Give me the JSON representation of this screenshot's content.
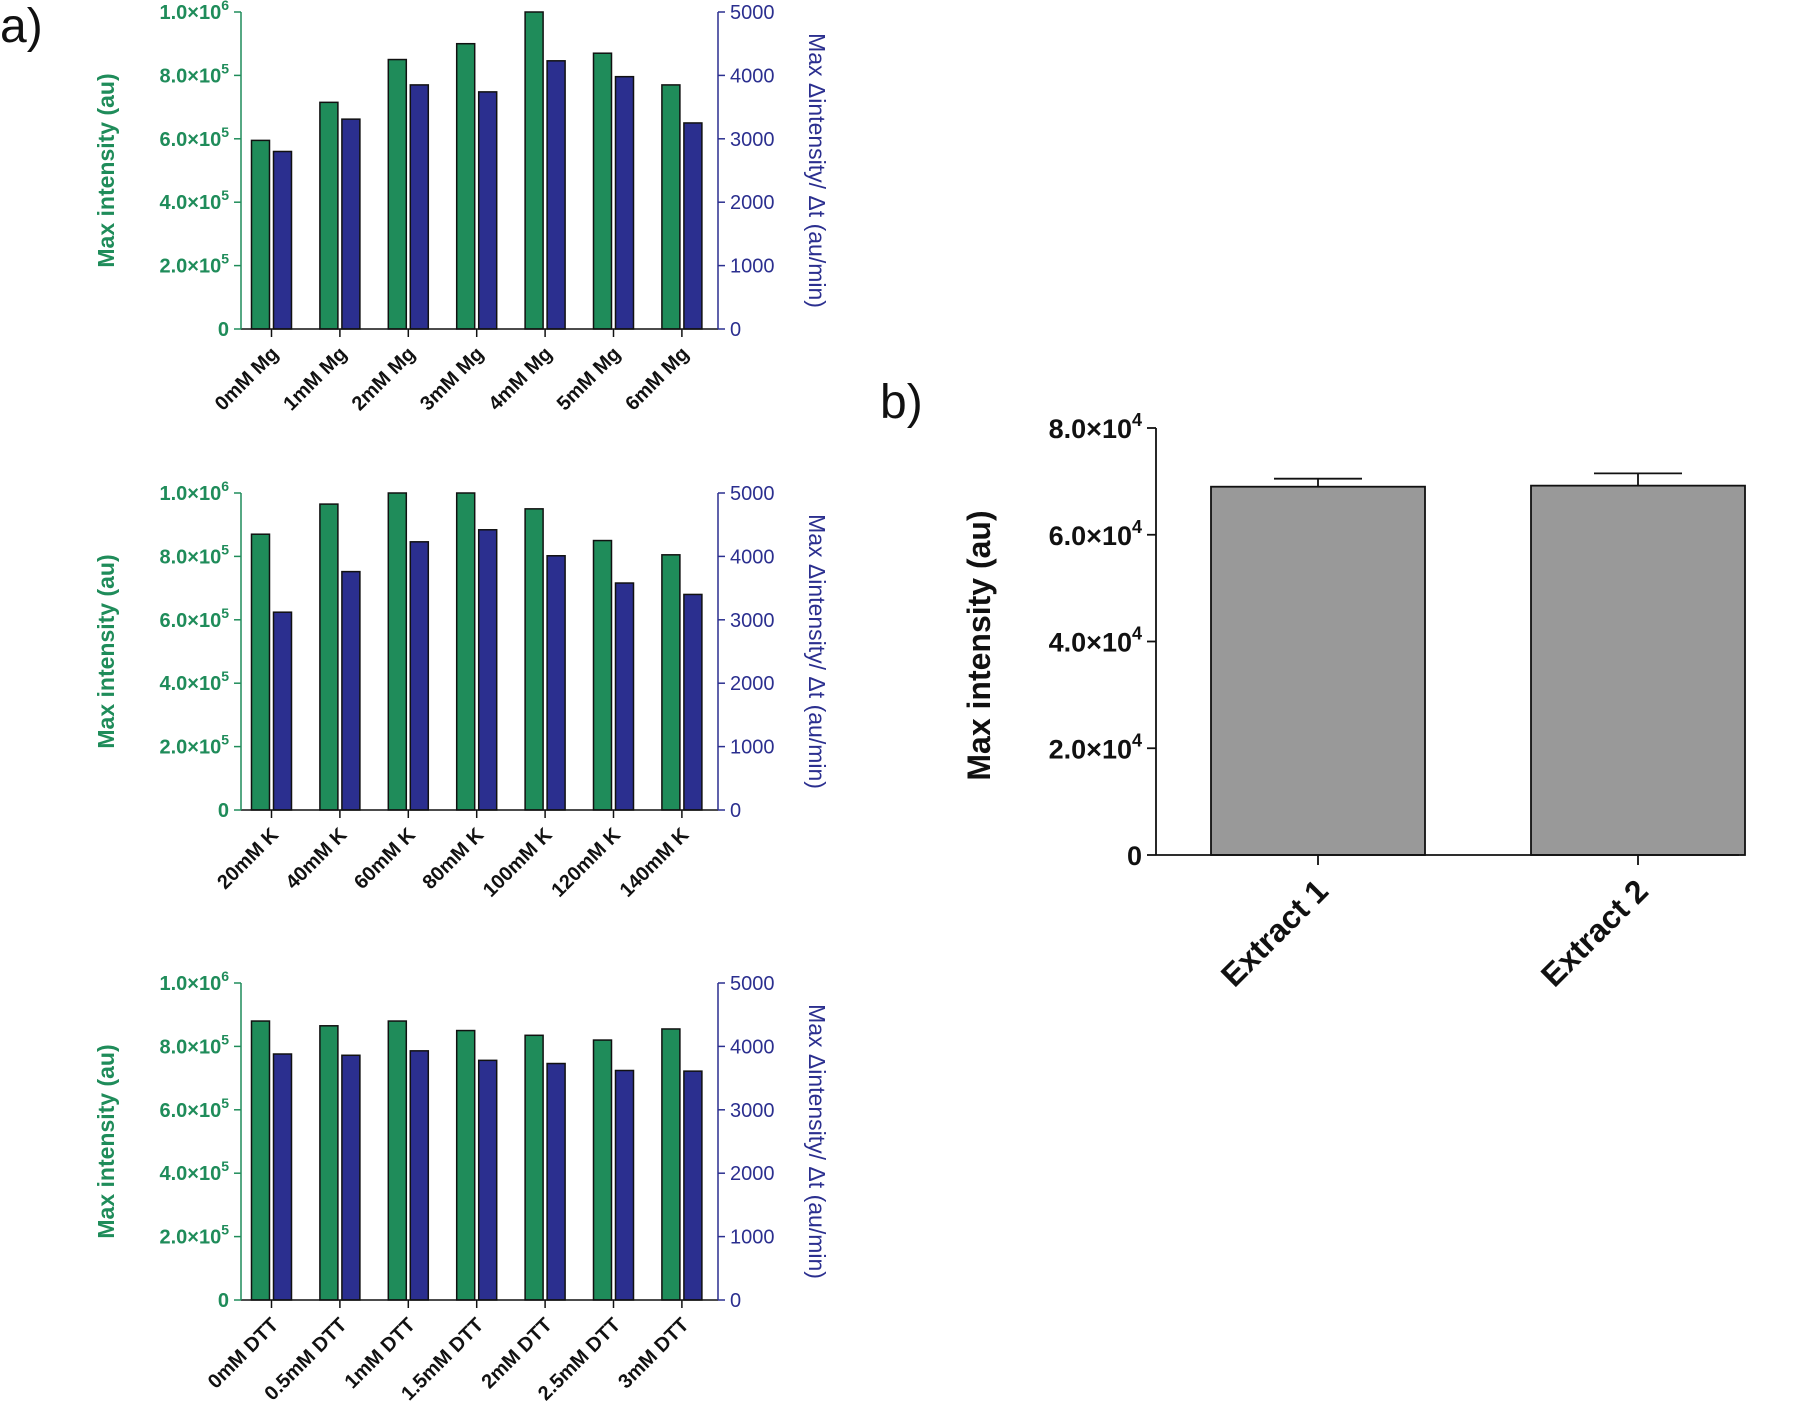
{
  "panel_labels": {
    "a": "a)",
    "b": "b)"
  },
  "colors": {
    "green": "#1f8c5a",
    "blue": "#2b2f8f",
    "gray": "#999999",
    "axis_black": "#111111"
  },
  "chart_data": [
    {
      "id": "a1",
      "type": "bar",
      "title": "",
      "categories": [
        "0mM Mg",
        "1mM Mg",
        "2mM Mg",
        "3mM Mg",
        "4mM Mg",
        "5mM Mg",
        "6mM Mg"
      ],
      "series": [
        {
          "name": "Max intensity",
          "axis": "left",
          "values": [
            595000,
            715000,
            850000,
            900000,
            1000000,
            870000,
            770000
          ]
        },
        {
          "name": "Max Δintensity/Δt",
          "axis": "right",
          "values": [
            2800,
            3310,
            3850,
            3740,
            4230,
            3980,
            3250
          ]
        }
      ],
      "ylabel": "Max intensity  (au)",
      "ylabel_right": "Max Δintensity/ Δt (au/min)",
      "ylim": [
        0,
        1000000
      ],
      "ylim_right": [
        0,
        5000
      ],
      "yticks_left": [
        {
          "value": 0,
          "mantissa": "0",
          "exp": ""
        },
        {
          "value": 200000,
          "mantissa": "2.0×10",
          "exp": "5"
        },
        {
          "value": 400000,
          "mantissa": "4.0×10",
          "exp": "5"
        },
        {
          "value": 600000,
          "mantissa": "6.0×10",
          "exp": "5"
        },
        {
          "value": 800000,
          "mantissa": "8.0×10",
          "exp": "5"
        },
        {
          "value": 1000000,
          "mantissa": "1.0×10",
          "exp": "6"
        }
      ],
      "yticks_right": [
        "0",
        "1000",
        "2000",
        "3000",
        "4000",
        "5000"
      ]
    },
    {
      "id": "a2",
      "type": "bar",
      "title": "",
      "categories": [
        "20mM K",
        "40mM K",
        "60mM K",
        "80mM K",
        "100mM K",
        "120mM K",
        "140mM K"
      ],
      "series": [
        {
          "name": "Max intensity",
          "axis": "left",
          "values": [
            870000,
            965000,
            1000000,
            1000000,
            950000,
            850000,
            805000
          ]
        },
        {
          "name": "Max Δintensity/Δt",
          "axis": "right",
          "values": [
            3120,
            3760,
            4230,
            4420,
            4010,
            3580,
            3400
          ]
        }
      ],
      "ylabel": "Max intensity  (au)",
      "ylabel_right": "Max Δintensity/ Δt (au/min)",
      "ylim": [
        0,
        1000000
      ],
      "ylim_right": [
        0,
        5000
      ],
      "yticks_left": [
        {
          "value": 0,
          "mantissa": "0",
          "exp": ""
        },
        {
          "value": 200000,
          "mantissa": "2.0×10",
          "exp": "5"
        },
        {
          "value": 400000,
          "mantissa": "4.0×10",
          "exp": "5"
        },
        {
          "value": 600000,
          "mantissa": "6.0×10",
          "exp": "5"
        },
        {
          "value": 800000,
          "mantissa": "8.0×10",
          "exp": "5"
        },
        {
          "value": 1000000,
          "mantissa": "1.0×10",
          "exp": "6"
        }
      ],
      "yticks_right": [
        "0",
        "1000",
        "2000",
        "3000",
        "4000",
        "5000"
      ]
    },
    {
      "id": "a3",
      "type": "bar",
      "title": "",
      "categories": [
        "0mM DTT",
        "0.5mM DTT",
        "1mM DTT",
        "1.5mM DTT",
        "2mM DTT",
        "2.5mM DTT",
        "3mM DTT"
      ],
      "series": [
        {
          "name": "Max intensity",
          "axis": "left",
          "values": [
            880000,
            865000,
            880000,
            850000,
            835000,
            820000,
            855000
          ]
        },
        {
          "name": "Max Δintensity/Δt",
          "axis": "right",
          "values": [
            3880,
            3860,
            3930,
            3780,
            3730,
            3620,
            3610
          ]
        }
      ],
      "ylabel": "Max intensity  (au)",
      "ylabel_right": "Max Δintensity/ Δt (au/min)",
      "ylim": [
        0,
        1000000
      ],
      "ylim_right": [
        0,
        5000
      ],
      "yticks_left": [
        {
          "value": 0,
          "mantissa": "0",
          "exp": ""
        },
        {
          "value": 200000,
          "mantissa": "2.0×10",
          "exp": "5"
        },
        {
          "value": 400000,
          "mantissa": "4.0×10",
          "exp": "5"
        },
        {
          "value": 600000,
          "mantissa": "6.0×10",
          "exp": "5"
        },
        {
          "value": 800000,
          "mantissa": "8.0×10",
          "exp": "5"
        },
        {
          "value": 1000000,
          "mantissa": "1.0×10",
          "exp": "6"
        }
      ],
      "yticks_right": [
        "0",
        "1000",
        "2000",
        "3000",
        "4000",
        "5000"
      ]
    },
    {
      "id": "b",
      "type": "bar",
      "title": "",
      "categories": [
        "Extract 1",
        "Extract 2"
      ],
      "values": [
        69000,
        69200
      ],
      "errors": [
        1500,
        2300
      ],
      "ylabel": "Max intensity  (au)",
      "xlabel": "",
      "ylim": [
        0,
        80000
      ],
      "yticks_left": [
        {
          "value": 0,
          "mantissa": "0",
          "exp": ""
        },
        {
          "value": 20000,
          "mantissa": "2.0×10",
          "exp": "4"
        },
        {
          "value": 40000,
          "mantissa": "4.0×10",
          "exp": "4"
        },
        {
          "value": 60000,
          "mantissa": "6.0×10",
          "exp": "4"
        },
        {
          "value": 80000,
          "mantissa": "8.0×10",
          "exp": "4"
        }
      ]
    }
  ]
}
